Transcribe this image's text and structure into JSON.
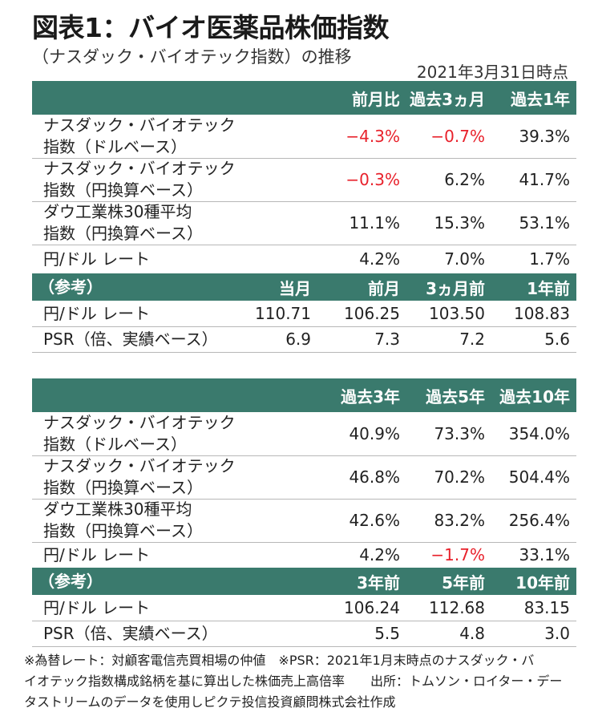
{
  "title": "図表1：バイオ医薬品株価指数",
  "subtitle": "（ナスダック・バイオテック指数）の推移",
  "as_of": "2021年3月31日時点",
  "table1": {
    "headers": [
      "前月比",
      "過去3ヵ月",
      "過去1年"
    ],
    "rows": [
      {
        "label": [
          "ナスダック・バイオテック",
          "指数（ドルベース）"
        ],
        "values": [
          "−4.3%",
          "−0.7%",
          "39.3%"
        ],
        "negative": [
          true,
          true,
          false
        ]
      },
      {
        "label": [
          "ナスダック・バイオテック",
          "指数（円換算ベース）"
        ],
        "values": [
          "−0.3%",
          "6.2%",
          "41.7%"
        ],
        "negative": [
          true,
          false,
          false
        ]
      },
      {
        "label": [
          "ダウ工業株30種平均",
          "指数（円換算ベース）"
        ],
        "values": [
          "11.1%",
          "15.3%",
          "53.1%"
        ],
        "negative": [
          false,
          false,
          false
        ]
      },
      {
        "label": [
          "円/ドル レート",
          ""
        ],
        "values": [
          "4.2%",
          "7.0%",
          "1.7%"
        ],
        "negative": [
          false,
          false,
          false
        ]
      }
    ],
    "ref_header": {
      "label": "（参考）",
      "cols": [
        "当月",
        "前月",
        "3ヵ月前",
        "1年前"
      ]
    },
    "ref_rows": [
      {
        "label": "円/ドル レート",
        "values": [
          "110.71",
          "106.25",
          "103.50",
          "108.83"
        ]
      },
      {
        "label": "PSR（倍、実績ベース）",
        "values": [
          "6.9",
          "7.3",
          "7.2",
          "5.6"
        ]
      }
    ]
  },
  "table2": {
    "headers": [
      "過去3年",
      "過去5年",
      "過去10年"
    ],
    "rows": [
      {
        "label": [
          "ナスダック・バイオテック",
          "指数（ドルベース）"
        ],
        "values": [
          "40.9%",
          "73.3%",
          "354.0%"
        ],
        "negative": [
          false,
          false,
          false
        ]
      },
      {
        "label": [
          "ナスダック・バイオテック",
          "指数（円換算ベース）"
        ],
        "values": [
          "46.8%",
          "70.2%",
          "504.4%"
        ],
        "negative": [
          false,
          false,
          false
        ]
      },
      {
        "label": [
          "ダウ工業株30種平均",
          "指数（円換算ベース）"
        ],
        "values": [
          "42.6%",
          "83.2%",
          "256.4%"
        ],
        "negative": [
          false,
          false,
          false
        ]
      },
      {
        "label": [
          "円/ドル レート",
          ""
        ],
        "values": [
          "4.2%",
          "−1.7%",
          "33.1%"
        ],
        "negative": [
          false,
          true,
          false
        ]
      }
    ],
    "ref_header": {
      "label": "（参考）",
      "cols": [
        "3年前",
        "5年前",
        "10年前"
      ]
    },
    "ref_rows": [
      {
        "label": "円/ドル レート",
        "values": [
          "106.24",
          "112.68",
          "83.15"
        ]
      },
      {
        "label": "PSR（倍、実績ベース）",
        "values": [
          "5.5",
          "4.8",
          "3.0"
        ]
      }
    ]
  },
  "footer": [
    "※為替レート：対顧客電信売買相場の仲値　※PSR：2021年1月末時点のナスダック・バ",
    "イオテック指数構成銘柄を基に算出した株価売上高倍率　　出所：トムソン・ロイター・デー",
    "タストリームのデータを使用しピクテ投信投資顧問株式会社作成"
  ],
  "colors": {
    "header_bg": "#3a7a6d",
    "negative": "#e8212b"
  }
}
